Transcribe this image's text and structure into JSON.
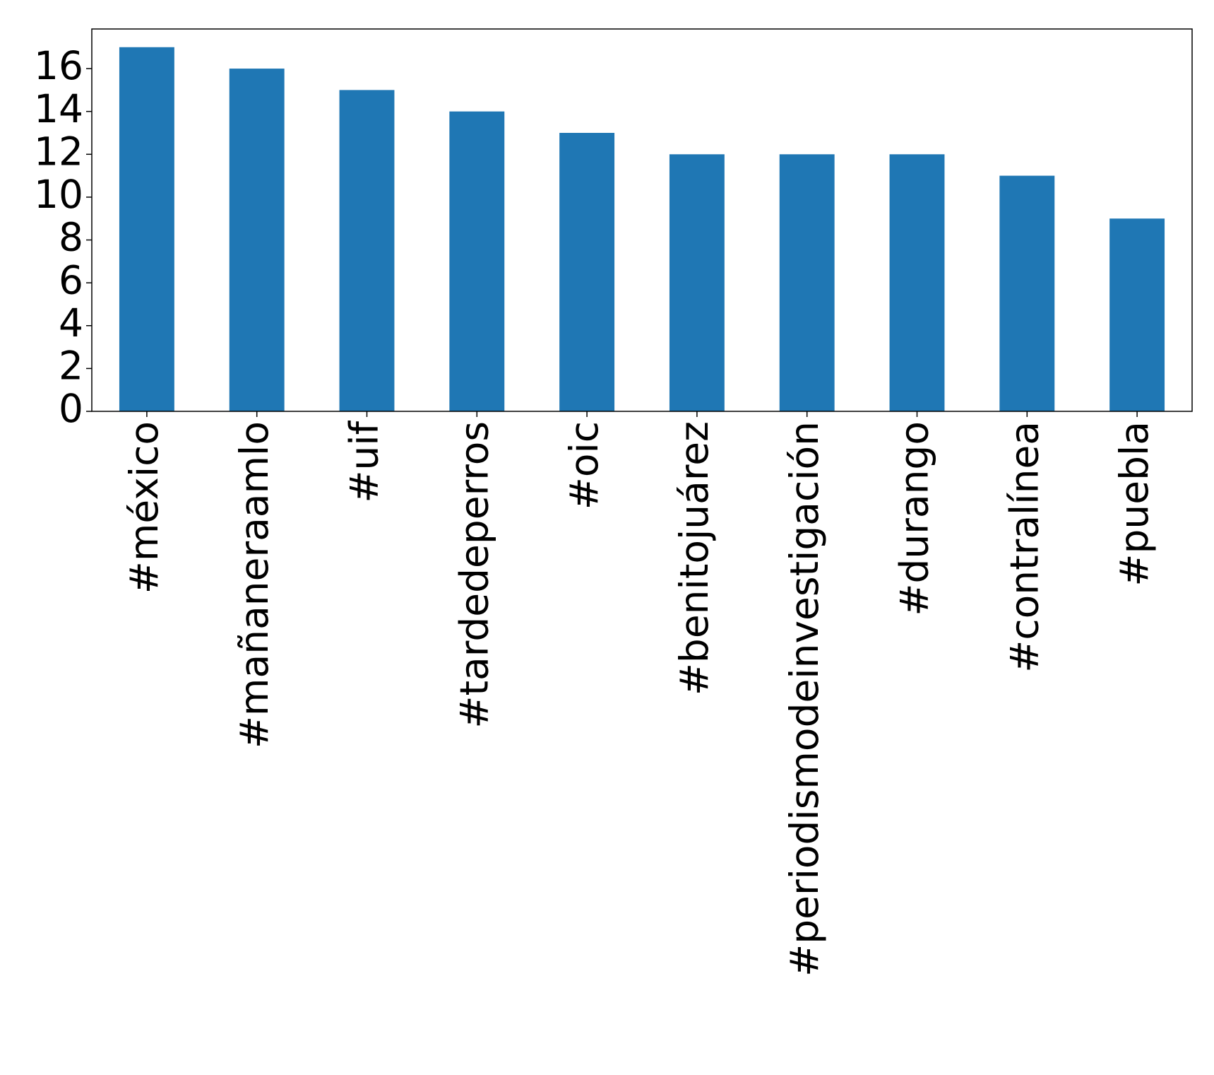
{
  "chart_data": {
    "type": "bar",
    "categories": [
      "#méxico",
      "#mañaneraamlo",
      "#uif",
      "#tardedeperros",
      "#oic",
      "#benitojuárez",
      "#periodismodeinvestigación",
      "#durango",
      "#contralínea",
      "#puebla"
    ],
    "values": [
      17,
      16,
      15,
      14,
      13,
      12,
      12,
      12,
      11,
      9
    ],
    "color": "#1f77b4",
    "ylim": [
      0,
      17.85
    ],
    "yticks": [
      0,
      2,
      4,
      6,
      8,
      10,
      12,
      14,
      16
    ],
    "grid": false
  }
}
